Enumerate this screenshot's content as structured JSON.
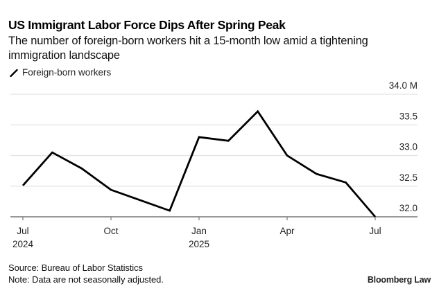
{
  "header": {
    "title": "US Immigrant Labor Force Dips After Spring Peak",
    "subtitle": "The number of foreign-born workers hit a 15-month low amid a tightening immigration landscape"
  },
  "footer": {
    "source": "Source: Bureau of Labor Statistics",
    "note": "Note: Data are not seasonally adjusted.",
    "brand": "Bloomberg Law"
  },
  "colors": {
    "line": "#000000",
    "grid": "#e3e3e3",
    "axis": "#777777"
  },
  "chart_data": {
    "type": "line",
    "title": "US Immigrant Labor Force Dips After Spring Peak",
    "xlabel": "",
    "ylabel": "",
    "legend": {
      "entries": [
        "Foreign-born workers"
      ],
      "placement": "top-left"
    },
    "grid": true,
    "x": [
      "2024-07",
      "2024-08",
      "2024-09",
      "2024-10",
      "2024-11",
      "2024-12",
      "2025-01",
      "2025-02",
      "2025-03",
      "2025-04",
      "2025-05",
      "2025-06",
      "2025-07"
    ],
    "series": [
      {
        "name": "Foreign-born workers",
        "unit": "M",
        "values": [
          32.51,
          33.05,
          32.79,
          32.44,
          32.27,
          32.1,
          33.3,
          33.24,
          33.72,
          33.0,
          32.7,
          32.56,
          32.0
        ]
      }
    ],
    "ylim": [
      32.0,
      34.0
    ],
    "y_ticks": [
      {
        "value": 32.0,
        "label": "32.0"
      },
      {
        "value": 32.5,
        "label": "32.5"
      },
      {
        "value": 33.0,
        "label": "33.0"
      },
      {
        "value": 33.5,
        "label": "33.5"
      },
      {
        "value": 34.0,
        "label": "34.0 M"
      }
    ],
    "x_ticks": [
      {
        "index": 0,
        "label": "Jul",
        "sublabel": "2024"
      },
      {
        "index": 3,
        "label": "Oct",
        "sublabel": ""
      },
      {
        "index": 6,
        "label": "Jan",
        "sublabel": "2025"
      },
      {
        "index": 9,
        "label": "Apr",
        "sublabel": ""
      },
      {
        "index": 12,
        "label": "Jul",
        "sublabel": ""
      }
    ]
  }
}
